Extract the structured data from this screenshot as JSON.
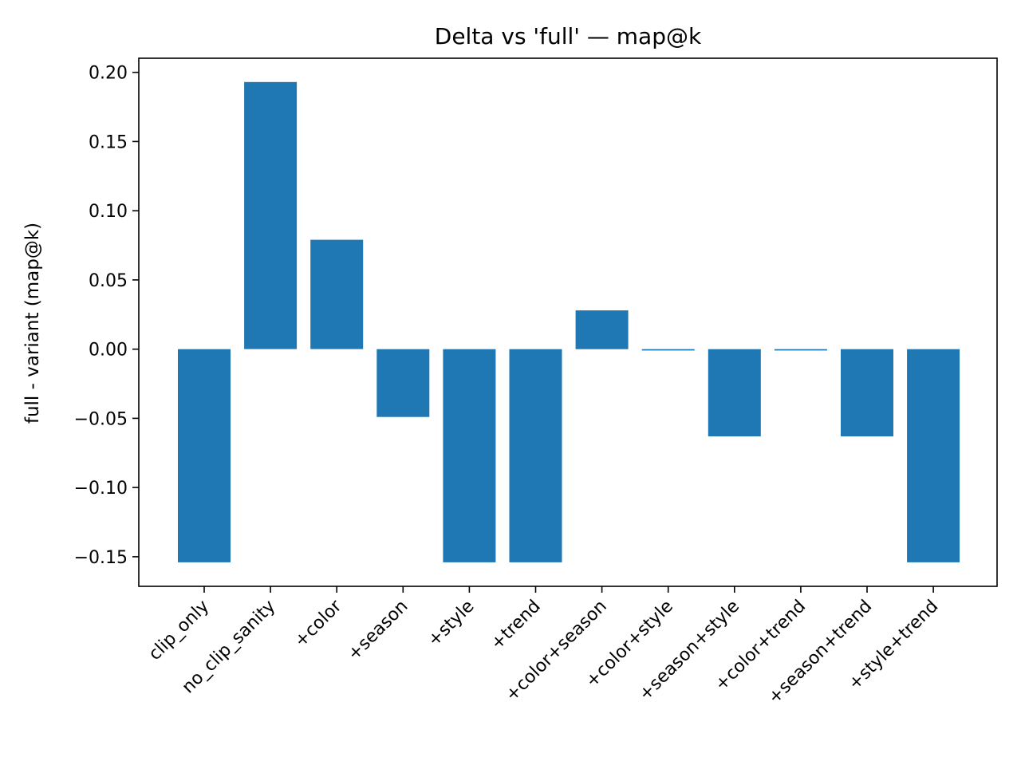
{
  "chart_data": {
    "type": "bar",
    "title": "Delta vs 'full' — map@k",
    "xlabel": "",
    "ylabel": "full - variant (map@k)",
    "categories": [
      "clip_only",
      "no_clip_sanity",
      "+color",
      "+season",
      "+style",
      "+trend",
      "+color+season",
      "+color+style",
      "+season+style",
      "+color+trend",
      "+season+trend",
      "+style+trend"
    ],
    "values": [
      -0.154,
      0.193,
      0.079,
      -0.049,
      -0.154,
      -0.154,
      0.028,
      -0.001,
      -0.063,
      -0.001,
      -0.063,
      -0.154
    ],
    "ylim": [
      -0.1714,
      0.2102
    ],
    "yticks": [
      -0.15,
      -0.1,
      -0.05,
      0.0,
      0.05,
      0.1,
      0.15,
      0.2
    ],
    "ytick_labels": [
      "−0.15",
      "−0.10",
      "−0.05",
      "0.00",
      "0.05",
      "0.10",
      "0.15",
      "0.20"
    ],
    "grid": false,
    "bar_color": "#1f77b4"
  }
}
